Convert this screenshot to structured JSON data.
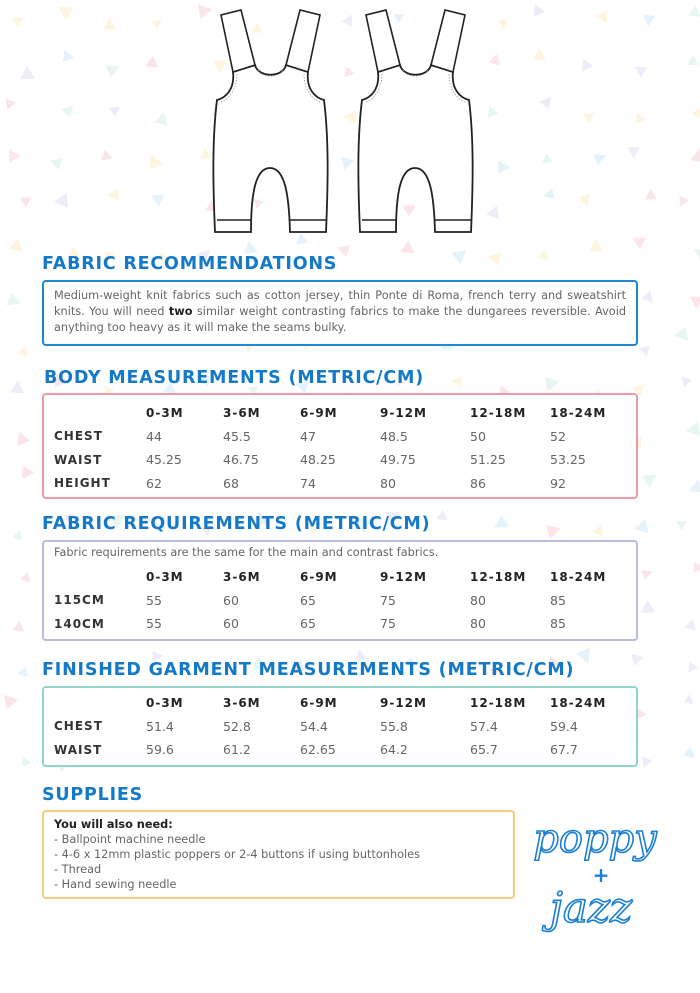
{
  "colors": {
    "heading": "#1479c9",
    "fabric_box": "#1e88d2",
    "body_box": "#ee9aa6",
    "req_box": "#b9bde0",
    "finished_box": "#8fd6c8",
    "supplies_box": "#f6cf7e",
    "logo": "#1a7fd6"
  },
  "illustration": {
    "front_icon": "dungarees-front-icon",
    "back_icon": "dungarees-back-icon"
  },
  "fabric_recommendations": {
    "title": "FABRIC RECOMMENDATIONS",
    "text_before": "Medium-weight knit fabrics such as cotton jersey, thin Ponte di Roma, french terry and sweatshirt knits. You will need ",
    "text_bold": "two",
    "text_after": " similar weight contrasting fabrics to make the dungarees reversible. Avoid anything too heavy as it will make the seams bulky."
  },
  "body_measurements": {
    "title": "BODY MEASUREMENTS (METRIC/CM)",
    "columns": [
      "0-3M",
      "3-6M",
      "6-9M",
      "9-12M",
      "12-18M",
      "18-24M"
    ],
    "rows": [
      {
        "label": "CHEST",
        "values": [
          "44",
          "45.5",
          "47",
          "48.5",
          "50",
          "52"
        ]
      },
      {
        "label": "WAIST",
        "values": [
          "45.25",
          "46.75",
          "48.25",
          "49.75",
          "51.25",
          "53.25"
        ]
      },
      {
        "label": "HEIGHT",
        "values": [
          "62",
          "68",
          "74",
          "80",
          "86",
          "92"
        ]
      }
    ]
  },
  "fabric_requirements": {
    "title": "FABRIC REQUIREMENTS (METRIC/CM)",
    "note": "Fabric requirements are the same for the main and contrast fabrics.",
    "columns": [
      "0-3M",
      "3-6M",
      "6-9M",
      "9-12M",
      "12-18M",
      "18-24M"
    ],
    "rows": [
      {
        "label": "115CM",
        "values": [
          "55",
          "60",
          "65",
          "75",
          "80",
          "85"
        ]
      },
      {
        "label": "140CM",
        "values": [
          "55",
          "60",
          "65",
          "75",
          "80",
          "85"
        ]
      }
    ]
  },
  "finished_garment": {
    "title": "FINISHED GARMENT MEASUREMENTS (METRIC/CM)",
    "columns": [
      "0-3M",
      "3-6M",
      "6-9M",
      "9-12M",
      "12-18M",
      "18-24M"
    ],
    "rows": [
      {
        "label": "CHEST",
        "values": [
          "51.4",
          "52.8",
          "54.4",
          "55.8",
          "57.4",
          "59.4"
        ]
      },
      {
        "label": "WAIST",
        "values": [
          "59.6",
          "61.2",
          "62.65",
          "64.2",
          "65.7",
          "67.7"
        ]
      }
    ]
  },
  "supplies": {
    "title": "SUPPLIES",
    "intro": "You will also need:",
    "items": [
      "- Ballpoint machine needle",
      "- 4-6 x 12mm plastic poppers or 2-4 buttons if using buttonholes",
      "- Thread",
      "- Hand sewing needle"
    ]
  },
  "logo": {
    "line1": "poppy",
    "line2": "+",
    "line3": "jazz"
  }
}
